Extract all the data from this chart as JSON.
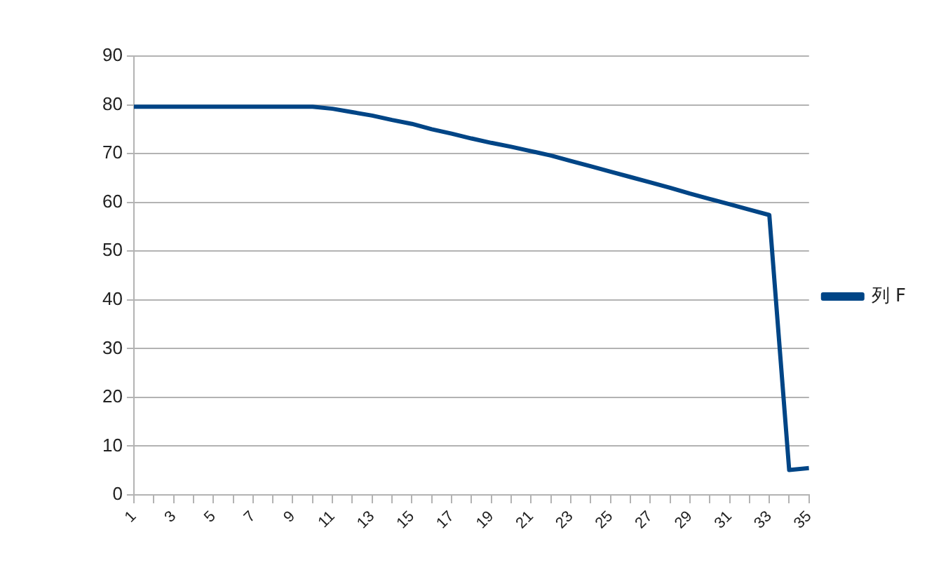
{
  "chart_data": {
    "type": "line",
    "x": [
      1,
      2,
      3,
      4,
      5,
      6,
      7,
      8,
      9,
      10,
      11,
      12,
      13,
      14,
      15,
      16,
      17,
      18,
      19,
      20,
      21,
      22,
      23,
      24,
      25,
      26,
      27,
      28,
      29,
      30,
      31,
      32,
      33,
      34,
      35
    ],
    "series": [
      {
        "name": "列 F",
        "color": "#004586",
        "values": [
          79.6,
          79.6,
          79.6,
          79.6,
          79.6,
          79.6,
          79.6,
          79.6,
          79.6,
          79.6,
          79.2,
          78.5,
          77.8,
          76.9,
          76.1,
          75,
          74.1,
          73.1,
          72.2,
          71.4,
          70.5,
          69.6,
          68.5,
          67.4,
          66.3,
          65.2,
          64.1,
          63,
          61.8,
          60.7,
          59.6,
          58.5,
          57.4,
          5.1,
          5.5
        ]
      }
    ],
    "xlim": [
      1,
      35
    ],
    "xticks": [
      1,
      {
        "value": 2,
        "label": null
      },
      3,
      {
        "value": 4,
        "label": null
      },
      5,
      {
        "value": 6,
        "label": null
      },
      7,
      {
        "value": 8,
        "label": null
      },
      9,
      {
        "value": 10,
        "label": null
      },
      11,
      {
        "value": 12,
        "label": null
      },
      13,
      {
        "value": 14,
        "label": null
      },
      15,
      {
        "value": 16,
        "label": null
      },
      17,
      {
        "value": 18,
        "label": null
      },
      19,
      {
        "value": 20,
        "label": null
      },
      21,
      {
        "value": 22,
        "label": null
      },
      23,
      {
        "value": 24,
        "label": null
      },
      25,
      {
        "value": 26,
        "label": null
      },
      27,
      {
        "value": 28,
        "label": null
      },
      29,
      {
        "value": 30,
        "label": null
      },
      31,
      {
        "value": 32,
        "label": null
      },
      33,
      {
        "value": 34,
        "label": null
      },
      35
    ],
    "ylim": [
      0,
      90
    ],
    "yticks": [
      0,
      10,
      20,
      30,
      40,
      50,
      60,
      70,
      80,
      90
    ],
    "grid": "y",
    "legend": "right",
    "marker": "none",
    "line_style": "solid"
  }
}
